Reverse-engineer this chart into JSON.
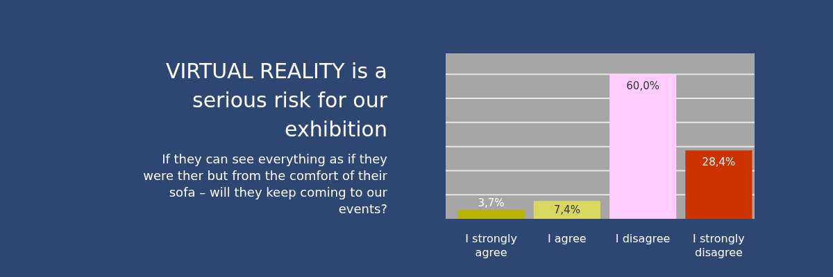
{
  "chart_data": {
    "type": "bar",
    "title": "VIRTUAL REALITY is a serious risk for our exhibition",
    "subtitle": "If they can see everything as if they were ther but from the comfort of their sofa – will they keep coming to our events?",
    "categories": [
      "I strongly agree",
      "I agree",
      "I disagree",
      "I strongly disagree"
    ],
    "values": [
      3.7,
      7.4,
      60.0,
      28.4
    ],
    "colors": [
      "#b8b400",
      "#d8d85e",
      "#ffccff",
      "#cc3300"
    ],
    "value_labels": [
      "3,7%",
      "7,4%",
      "60,0%",
      "28,4%"
    ],
    "ylim": [
      0,
      68.7
    ],
    "yticks": [
      {
        "value": 10,
        "label": null
      },
      {
        "value": 20,
        "label": null
      },
      {
        "value": 30,
        "label": null
      },
      {
        "value": 40,
        "label": null
      },
      {
        "value": 50,
        "label": null
      },
      {
        "value": 60,
        "label": null
      }
    ],
    "grid": "y",
    "tick_labels": "x"
  }
}
